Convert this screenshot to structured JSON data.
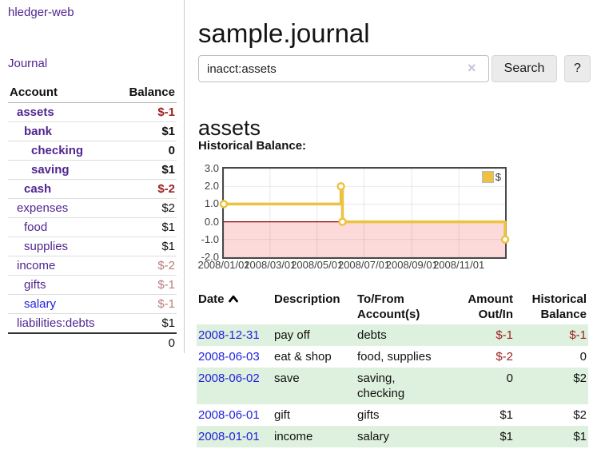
{
  "colors": {
    "link_purple": "#51258f",
    "link_blue": "#2222dd",
    "negative_strong": "#9e2121",
    "negative_muted": "#ba7d7d",
    "row_stripe_green": "#def0de",
    "series_gold": "#edc240"
  },
  "sidebar": {
    "brand": "hledger-web",
    "nav": {
      "journal": "Journal"
    },
    "accounts_header": {
      "account": "Account",
      "balance": "Balance"
    },
    "accounts": [
      {
        "name": "assets",
        "balance": "$-1",
        "level": 0,
        "bold": true,
        "balance_tone": "negative-strong"
      },
      {
        "name": "bank",
        "balance": "$1",
        "level": 1,
        "bold": true,
        "balance_tone": "normal"
      },
      {
        "name": "checking",
        "balance": "0",
        "level": 2,
        "bold": true,
        "balance_tone": "normal"
      },
      {
        "name": "saving",
        "balance": "$1",
        "level": 2,
        "bold": true,
        "balance_tone": "normal"
      },
      {
        "name": "cash",
        "balance": "$-2",
        "level": 1,
        "bold": true,
        "balance_tone": "negative-strong"
      },
      {
        "name": "expenses",
        "balance": "$2",
        "level": 0,
        "bold": false,
        "balance_tone": "normal"
      },
      {
        "name": "food",
        "balance": "$1",
        "level": 1,
        "bold": false,
        "balance_tone": "normal"
      },
      {
        "name": "supplies",
        "balance": "$1",
        "level": 1,
        "bold": false,
        "balance_tone": "normal"
      },
      {
        "name": "income",
        "balance": "$-2",
        "level": 0,
        "bold": false,
        "balance_tone": "negative-muted"
      },
      {
        "name": "gifts",
        "balance": "$-1",
        "level": 1,
        "bold": false,
        "balance_tone": "negative-muted"
      },
      {
        "name": "salary",
        "balance": "$-1",
        "level": 1,
        "bold": false,
        "balance_tone": "negative-muted",
        "link_tone": "blue"
      },
      {
        "name": "liabilities:debts",
        "balance": "$1",
        "level": 0,
        "bold": false,
        "balance_tone": "normal"
      }
    ],
    "total": "0"
  },
  "main": {
    "title": "sample.journal",
    "search": {
      "value": "inacct:assets",
      "clear_icon": "×",
      "search_button": "Search",
      "help_button": "?"
    },
    "account_heading": "assets",
    "chart_label": "Historical Balance:"
  },
  "chart_data": {
    "type": "line",
    "step": true,
    "title": "Historical Balance:",
    "xlabel": "",
    "ylabel": "",
    "series": [
      {
        "name": "$",
        "color": "#edc240",
        "points": [
          [
            "2008-01-01",
            1
          ],
          [
            "2008-06-01",
            2
          ],
          [
            "2008-06-03",
            0
          ],
          [
            "2008-12-31",
            -1
          ]
        ]
      }
    ],
    "xlim": [
      "2008-01-01",
      "2008-12-31"
    ],
    "ylim": [
      -2,
      3
    ],
    "yticks": [
      3,
      2,
      1,
      0,
      -1,
      -2
    ],
    "ytick_labels": [
      "3.0",
      "2.0",
      "1.0",
      "0.0",
      "-1.0",
      "-2.0"
    ],
    "xticks": [
      "2008-01-01",
      "2008-03-01",
      "2008-05-01",
      "2008-07-01",
      "2008-09-01",
      "2008-11-01"
    ],
    "xtick_labels": [
      "2008/01/01",
      "2008/03/01",
      "2008/05/01",
      "2008/07/01",
      "2008/09/01",
      "2008/11/01"
    ],
    "grid": true,
    "legend_position": "top-right",
    "negative_region_color": "#fcdada",
    "zero_line_color": "#8b0000"
  },
  "register": {
    "headers": {
      "date": "Date",
      "description": "Description",
      "accounts_line1": "To/From",
      "accounts_line2": "Account(s)",
      "amount_line1": "Amount",
      "amount_line2": "Out/In",
      "balance_line1": "Historical",
      "balance_line2": "Balance"
    },
    "sort": {
      "column": "Date",
      "direction": "ascending"
    },
    "rows": [
      {
        "date": "2008-12-31",
        "description": "pay off",
        "accounts": "debts",
        "amount": "$-1",
        "balance": "$-1"
      },
      {
        "date": "2008-06-03",
        "description": "eat & shop",
        "accounts": "food, supplies",
        "amount": "$-2",
        "balance": "0"
      },
      {
        "date": "2008-06-02",
        "description": "save",
        "accounts": "saving, checking",
        "amount": "0",
        "balance": "$2"
      },
      {
        "date": "2008-06-01",
        "description": "gift",
        "accounts": "gifts",
        "amount": "$1",
        "balance": "$2"
      },
      {
        "date": "2008-01-01",
        "description": "income",
        "accounts": "salary",
        "amount": "$1",
        "balance": "$1"
      }
    ]
  }
}
